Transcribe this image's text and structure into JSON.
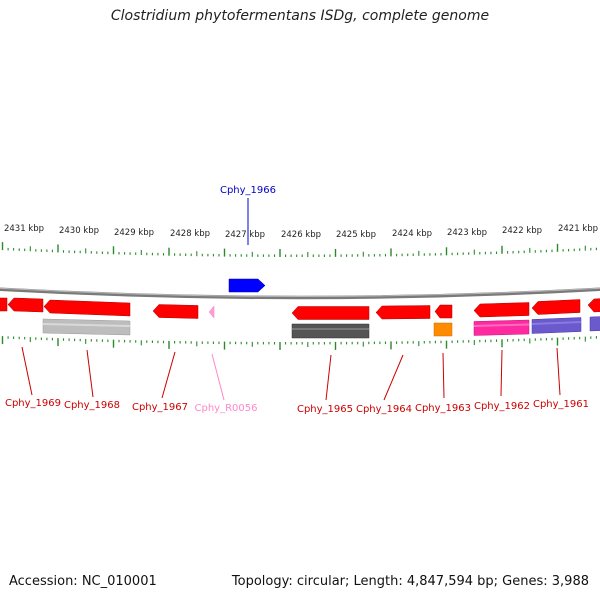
{
  "title": "Clostridium phytofermentans ISDg, complete genome",
  "footer": {
    "accession": "Accession: NC_010001",
    "summary": "Topology: circular; Length: 4,847,594 bp; Genes: 3,988"
  },
  "colors": {
    "backbone": "#7a7a7a",
    "tick": "#2a8a2a",
    "cds": "#ff0000",
    "forward_gene": "#0000ff",
    "rna": "#ff9fd0",
    "gray_light": "#bdbdbd",
    "gray_dark": "#555555",
    "orange": "#ff8c00",
    "magenta": "#ff2aa0",
    "purple": "#6a5acd"
  },
  "scale_labels": [
    "2431 kbp",
    "2430 kbp",
    "2429 kbp",
    "2428 kbp",
    "2427 kbp",
    "2426 kbp",
    "2425 kbp",
    "2424 kbp",
    "2423 kbp",
    "2422 kbp",
    "2421 kbp"
  ],
  "gene_labels": [
    {
      "text": "Cphy_1966",
      "color": "#0000cc"
    },
    {
      "text": "Cphy_1969",
      "color": "#cc0000"
    },
    {
      "text": "Cphy_1968",
      "color": "#cc0000"
    },
    {
      "text": "Cphy_1967",
      "color": "#cc0000"
    },
    {
      "text": "Cphy_R0056",
      "color": "#ff88c8"
    },
    {
      "text": "Cphy_1965",
      "color": "#cc0000"
    },
    {
      "text": "Cphy_1964",
      "color": "#cc0000"
    },
    {
      "text": "Cphy_1963",
      "color": "#cc0000"
    },
    {
      "text": "Cphy_1962",
      "color": "#cc0000"
    },
    {
      "text": "Cphy_1961",
      "color": "#cc0000"
    }
  ]
}
